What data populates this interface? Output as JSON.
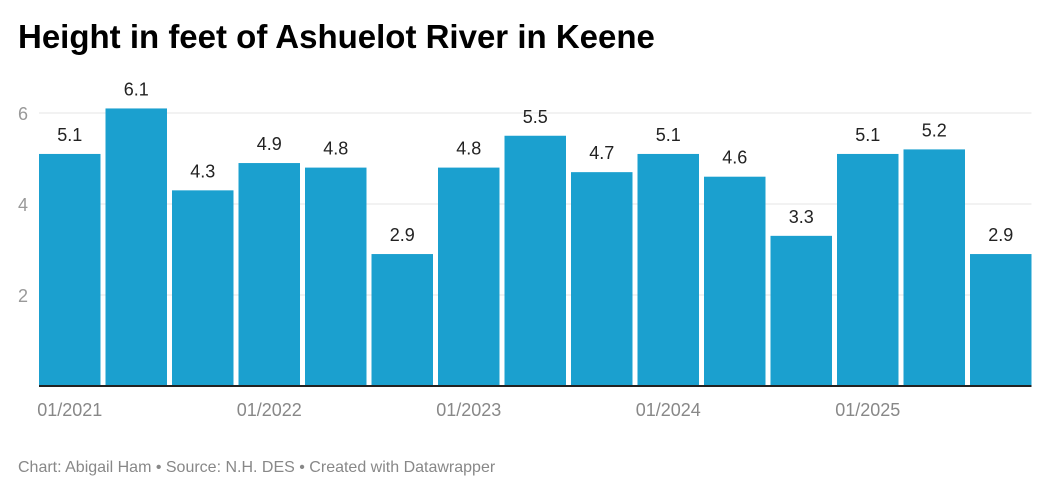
{
  "chart_data": {
    "type": "bar",
    "title": "Height in feet of Ashuelot River in Keene",
    "xlabel": "",
    "ylabel": "",
    "ylim": [
      0,
      6
    ],
    "grid": true,
    "color": "#1ba0cf",
    "y_ticks": [
      2,
      4,
      6
    ],
    "x_tick_labels": [
      "01/2021",
      "01/2022",
      "01/2023",
      "01/2024",
      "01/2025"
    ],
    "x_tick_positions": [
      0,
      3,
      6,
      9,
      12
    ],
    "values": [
      5.1,
      6.1,
      4.3,
      4.9,
      4.8,
      2.9,
      4.8,
      5.5,
      4.7,
      5.1,
      4.6,
      3.3,
      5.1,
      5.2,
      2.9
    ],
    "footer": "Chart: Abigail Ham • Source: N.H. DES • Created with Datawrapper"
  }
}
